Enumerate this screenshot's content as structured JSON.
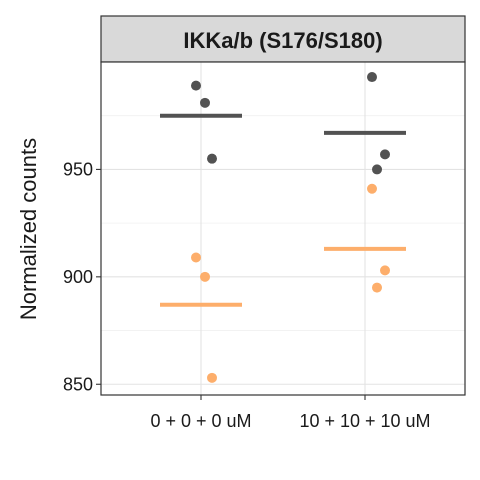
{
  "chart_data": {
    "type": "scatter",
    "title": "IKKa/b (S176/S180)",
    "xlabel": "",
    "ylabel": "Normalized counts",
    "categories": [
      "0 + 0 + 0 uM",
      "10 + 10 + 10 uM"
    ],
    "ylim": [
      845,
      1000
    ],
    "yticks": [
      850,
      900,
      950
    ],
    "grid": true,
    "legend": "none",
    "series": [
      {
        "color": "#525252",
        "points": [
          {
            "category": "0 + 0 + 0 uM",
            "y": 989
          },
          {
            "category": "0 + 0 + 0 uM",
            "y": 981
          },
          {
            "category": "0 + 0 + 0 uM",
            "y": 955
          },
          {
            "category": "10 + 10 + 10 uM",
            "y": 993
          },
          {
            "category": "10 + 10 + 10 uM",
            "y": 957
          },
          {
            "category": "10 + 10 + 10 uM",
            "y": 950
          }
        ],
        "means": [
          975,
          967
        ]
      },
      {
        "color": "#fdae6b",
        "points": [
          {
            "category": "0 + 0 + 0 uM",
            "y": 909
          },
          {
            "category": "0 + 0 + 0 uM",
            "y": 900
          },
          {
            "category": "0 + 0 + 0 uM",
            "y": 853
          },
          {
            "category": "10 + 10 + 10 uM",
            "y": 941
          },
          {
            "category": "10 + 10 + 10 uM",
            "y": 903
          },
          {
            "category": "10 + 10 + 10 uM",
            "y": 895
          }
        ],
        "means": [
          887,
          913
        ]
      }
    ]
  }
}
